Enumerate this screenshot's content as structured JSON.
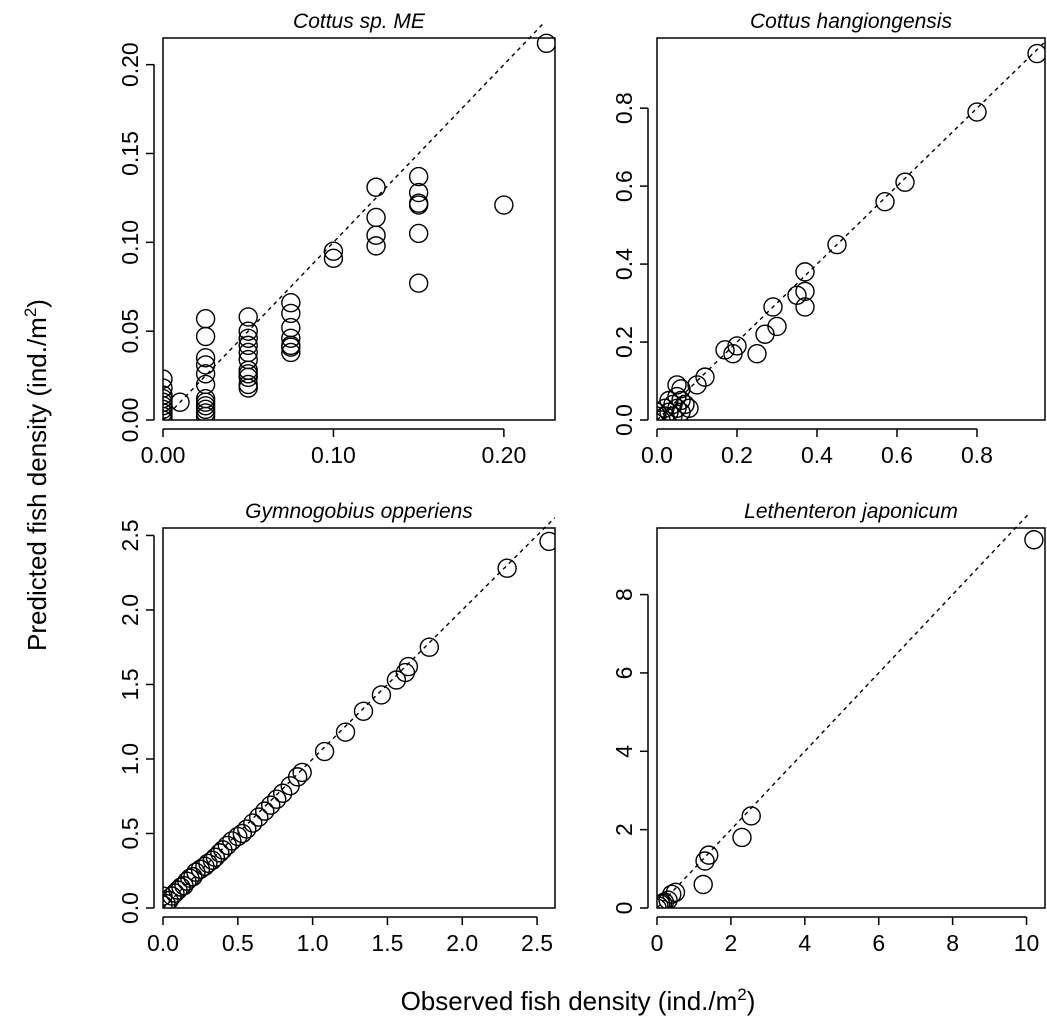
{
  "figure": {
    "xlabel": "Observed fish density (ind./m",
    "ylabel": "Predicted fish density (ind./m",
    "unit_superscript": "2",
    "unit_close": ")"
  },
  "chart_data": [
    {
      "type": "scatter",
      "title": "Cottus sp. ME",
      "xlim": [
        0,
        0.23
      ],
      "ylim": [
        0,
        0.215
      ],
      "xticks": [
        0,
        0.1,
        0.2
      ],
      "xtick_labels": [
        "0.00",
        "0.10",
        "0.20"
      ],
      "yticks": [
        0,
        0.05,
        0.1,
        0.15,
        0.2
      ],
      "ytick_labels": [
        "0.00",
        "0.05",
        "0.10",
        "0.15",
        "0.20"
      ],
      "reference_line": "1:1 dashed",
      "series": [
        {
          "x": [
            0,
            0,
            0,
            0,
            0,
            0,
            0,
            0,
            0,
            0,
            0.01,
            0.025,
            0.025,
            0.025,
            0.025,
            0.025,
            0.025,
            0.025,
            0.025,
            0.025,
            0.025,
            0.025,
            0.025,
            0.05,
            0.05,
            0.05,
            0.05,
            0.05,
            0.05,
            0.05,
            0.05,
            0.05,
            0.05,
            0.05,
            0.075,
            0.075,
            0.075,
            0.075,
            0.075,
            0.075,
            0.075,
            0.1,
            0.1,
            0.125,
            0.125,
            0.125,
            0.125,
            0.15,
            0.15,
            0.15,
            0.15,
            0.15,
            0.15,
            0.2,
            0.225
          ],
          "y": [
            0.023,
            0.018,
            0.014,
            0.012,
            0.01,
            0.008,
            0.006,
            0.004,
            0.002,
            0.0,
            0.01,
            0.057,
            0.047,
            0.035,
            0.031,
            0.026,
            0.02,
            0.012,
            0.01,
            0.008,
            0.006,
            0.004,
            0.002,
            0.058,
            0.05,
            0.046,
            0.042,
            0.038,
            0.034,
            0.028,
            0.026,
            0.024,
            0.02,
            0.018,
            0.066,
            0.06,
            0.052,
            0.046,
            0.042,
            0.038,
            0.041,
            0.095,
            0.091,
            0.131,
            0.114,
            0.104,
            0.098,
            0.137,
            0.128,
            0.122,
            0.121,
            0.105,
            0.077,
            0.121,
            0.212
          ]
        }
      ]
    },
    {
      "type": "scatter",
      "title": "Cottus hangiongensis",
      "xlim": [
        0,
        0.97
      ],
      "ylim": [
        0,
        0.98
      ],
      "xticks": [
        0,
        0.2,
        0.4,
        0.6,
        0.8
      ],
      "xtick_labels": [
        "0.0",
        "0.2",
        "0.4",
        "0.6",
        "0.8"
      ],
      "yticks": [
        0,
        0.2,
        0.4,
        0.6,
        0.8
      ],
      "ytick_labels": [
        "0.0",
        "0.2",
        "0.4",
        "0.6",
        "0.8"
      ],
      "reference_line": "1:1 dashed",
      "series": [
        {
          "x": [
            0,
            0,
            0.01,
            0.02,
            0.02,
            0.03,
            0.03,
            0.04,
            0.04,
            0.05,
            0.05,
            0.05,
            0.06,
            0.06,
            0.06,
            0.07,
            0.08,
            0.1,
            0.12,
            0.17,
            0.19,
            0.2,
            0.25,
            0.27,
            0.29,
            0.3,
            0.35,
            0.37,
            0.37,
            0.37,
            0.45,
            0.57,
            0.62,
            0.8,
            0.95
          ],
          "y": [
            0.02,
            0.01,
            0.0,
            0.03,
            0.01,
            0.05,
            0.02,
            0.04,
            0.01,
            0.09,
            0.06,
            0.03,
            0.08,
            0.05,
            0.02,
            0.04,
            0.03,
            0.09,
            0.11,
            0.18,
            0.17,
            0.19,
            0.17,
            0.22,
            0.29,
            0.24,
            0.32,
            0.38,
            0.33,
            0.29,
            0.45,
            0.56,
            0.61,
            0.79,
            0.94
          ]
        }
      ]
    },
    {
      "type": "scatter",
      "title": "Gymnogobius opperiens",
      "xlim": [
        0,
        2.62
      ],
      "ylim": [
        0,
        2.55
      ],
      "xticks": [
        0,
        0.5,
        1.0,
        1.5,
        2.0,
        2.5
      ],
      "xtick_labels": [
        "0.0",
        "0.5",
        "1.0",
        "1.5",
        "2.0",
        "2.5"
      ],
      "yticks": [
        0,
        0.5,
        1.0,
        1.5,
        2.0,
        2.5
      ],
      "ytick_labels": [
        "0.0",
        "0.5",
        "1.0",
        "1.5",
        "2.0",
        "2.5"
      ],
      "reference_line": "1:1 dashed",
      "series": [
        {
          "x": [
            0,
            0,
            0.02,
            0.04,
            0.06,
            0.08,
            0.1,
            0.12,
            0.14,
            0.16,
            0.18,
            0.2,
            0.22,
            0.25,
            0.28,
            0.3,
            0.33,
            0.35,
            0.38,
            0.4,
            0.43,
            0.46,
            0.5,
            0.53,
            0.56,
            0.6,
            0.64,
            0.68,
            0.72,
            0.76,
            0.8,
            0.85,
            0.9,
            0.93,
            1.08,
            1.22,
            1.34,
            1.46,
            1.56,
            1.62,
            1.64,
            1.78,
            2.3,
            2.58
          ],
          "y": [
            0.08,
            0.02,
            0.03,
            0.05,
            0.08,
            0.1,
            0.12,
            0.14,
            0.15,
            0.18,
            0.2,
            0.21,
            0.24,
            0.26,
            0.28,
            0.3,
            0.32,
            0.34,
            0.37,
            0.39,
            0.42,
            0.45,
            0.48,
            0.5,
            0.53,
            0.57,
            0.61,
            0.65,
            0.69,
            0.73,
            0.77,
            0.82,
            0.88,
            0.91,
            1.05,
            1.18,
            1.32,
            1.43,
            1.53,
            1.58,
            1.62,
            1.75,
            2.28,
            2.46
          ]
        }
      ]
    },
    {
      "type": "scatter",
      "title": "Lethenteron japonicum",
      "xlim": [
        0,
        10.5
      ],
      "ylim": [
        0,
        9.7
      ],
      "xticks": [
        0,
        2,
        4,
        6,
        8,
        10
      ],
      "xtick_labels": [
        "0",
        "2",
        "4",
        "6",
        "8",
        "10"
      ],
      "yticks": [
        0,
        2,
        4,
        6,
        8
      ],
      "ytick_labels": [
        "0",
        "2",
        "4",
        "6",
        "8"
      ],
      "reference_line": "1:1 dashed",
      "series": [
        {
          "x": [
            0.0,
            0.05,
            0.1,
            0.15,
            0.2,
            0.3,
            0.4,
            0.5,
            1.25,
            1.3,
            1.4,
            2.3,
            2.55,
            10.2
          ],
          "y": [
            0.0,
            0.05,
            0.1,
            0.12,
            0.15,
            0.2,
            0.35,
            0.4,
            0.6,
            1.2,
            1.35,
            1.8,
            2.35,
            9.4
          ]
        }
      ]
    }
  ]
}
